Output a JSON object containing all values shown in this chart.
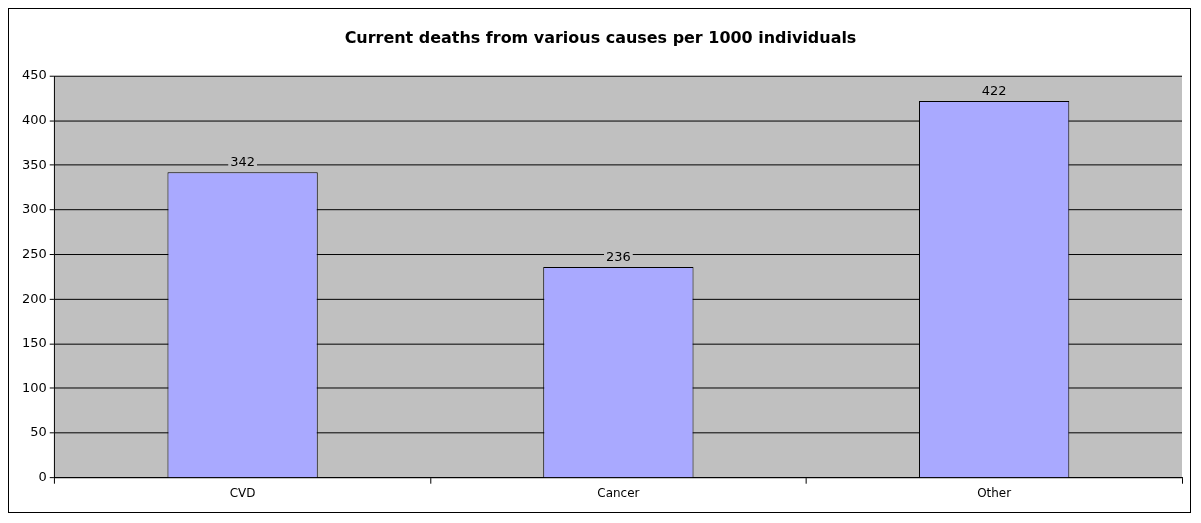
{
  "chart_data": {
    "type": "bar",
    "title": "Current deaths from various causes per 1000 individuals",
    "categories": [
      "CVD",
      "Cancer",
      "Other"
    ],
    "values": [
      342,
      236,
      422
    ],
    "color": "#a9a9ff",
    "ylim": [
      0,
      450
    ],
    "yticks": [
      0,
      50,
      100,
      150,
      200,
      250,
      300,
      350,
      400,
      450
    ],
    "grid": "y",
    "data_labels": true,
    "legend": false
  }
}
